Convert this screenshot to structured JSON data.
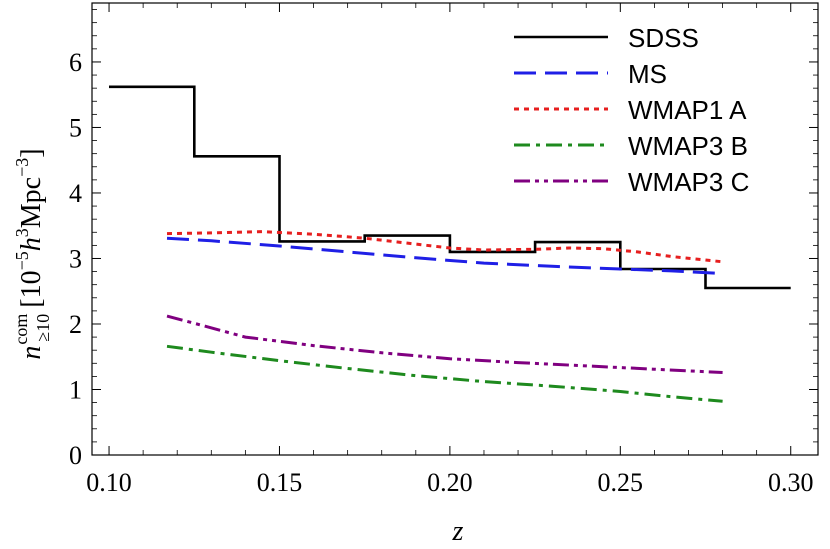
{
  "chart_data": {
    "type": "line",
    "title": "",
    "xlabel": "z",
    "ylabel": {
      "symbol": "n",
      "superscript": "com",
      "subscript": "≥10",
      "units_prefix": "[10",
      "units_exp": "−5",
      "units_h": "h",
      "units_h_exp": "3",
      "units_mpc": "Mpc",
      "units_mpc_exp": "−3",
      "units_suffix": "]"
    },
    "xlim": [
      0.095,
      0.308
    ],
    "ylim": [
      0,
      6.9
    ],
    "xticks": [
      0.1,
      0.15,
      0.2,
      0.25,
      0.3
    ],
    "xtick_labels": [
      "0.10",
      "0.15",
      "0.20",
      "0.25",
      "0.30"
    ],
    "yticks": [
      0,
      1,
      2,
      3,
      4,
      5,
      6
    ],
    "ytick_labels": [
      "0",
      "1",
      "2",
      "3",
      "4",
      "5",
      "6"
    ],
    "legend_position": "top-right",
    "series": [
      {
        "name": "SDSS",
        "style": "step",
        "color": "#000000",
        "bins": [
          {
            "x0": 0.1,
            "x1": 0.125,
            "y": 5.62
          },
          {
            "x0": 0.125,
            "x1": 0.15,
            "y": 4.56
          },
          {
            "x0": 0.15,
            "x1": 0.175,
            "y": 3.26
          },
          {
            "x0": 0.175,
            "x1": 0.2,
            "y": 3.35
          },
          {
            "x0": 0.2,
            "x1": 0.225,
            "y": 3.1
          },
          {
            "x0": 0.225,
            "x1": 0.25,
            "y": 3.25
          },
          {
            "x0": 0.25,
            "x1": 0.275,
            "y": 2.84
          },
          {
            "x0": 0.275,
            "x1": 0.3,
            "y": 2.55
          }
        ]
      },
      {
        "name": "MS",
        "style": "long-dash",
        "color": "#1f1fe6",
        "x": [
          0.117,
          0.13,
          0.15,
          0.17,
          0.19,
          0.21,
          0.23,
          0.25,
          0.265,
          0.28
        ],
        "y": [
          3.31,
          3.27,
          3.19,
          3.1,
          3.01,
          2.93,
          2.88,
          2.84,
          2.81,
          2.77
        ]
      },
      {
        "name": "WMAP1 A",
        "style": "dotted",
        "color": "#e61f1f",
        "x": [
          0.117,
          0.13,
          0.145,
          0.16,
          0.175,
          0.19,
          0.2,
          0.21,
          0.225,
          0.235,
          0.245,
          0.255,
          0.265,
          0.28
        ],
        "y": [
          3.38,
          3.39,
          3.41,
          3.37,
          3.31,
          3.22,
          3.16,
          3.13,
          3.14,
          3.16,
          3.15,
          3.1,
          3.03,
          2.95
        ]
      },
      {
        "name": "WMAP3 B",
        "style": "dash-dot",
        "color": "#1e8a1e",
        "x": [
          0.117,
          0.13,
          0.15,
          0.17,
          0.19,
          0.21,
          0.23,
          0.25,
          0.265,
          0.28
        ],
        "y": [
          1.66,
          1.57,
          1.44,
          1.32,
          1.21,
          1.12,
          1.05,
          0.97,
          0.89,
          0.82
        ]
      },
      {
        "name": "WMAP3 C",
        "style": "dash-dot-dot",
        "color": "#800080",
        "x": [
          0.117,
          0.125,
          0.14,
          0.16,
          0.18,
          0.2,
          0.22,
          0.24,
          0.26,
          0.28
        ],
        "y": [
          2.12,
          2.01,
          1.8,
          1.67,
          1.56,
          1.47,
          1.41,
          1.36,
          1.31,
          1.26
        ]
      }
    ]
  }
}
